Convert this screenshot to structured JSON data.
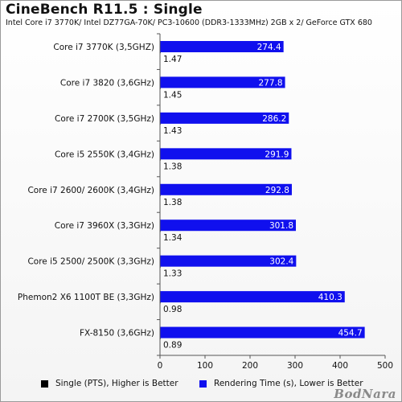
{
  "header": {
    "title": "CineBench R11.5 : Single",
    "subtitle": "Intel Core i7 3770K/ Intel DZ77GA-70K/ PC3-10600 (DDR3-1333MHz) 2GB x 2/ GeForce GTX 680"
  },
  "chart_data": {
    "type": "bar",
    "orientation": "horizontal",
    "title": "CineBench R11.5 : Single",
    "subtitle": "Intel Core i7 3770K/ Intel DZ77GA-70K/ PC3-10600 (DDR3-1333MHz) 2GB x 2/ GeForce GTX 680",
    "categories": [
      "Core i7 3770K (3,5GHZ)",
      "Core i7 3820 (3,6GHz)",
      "Core i7 2700K (3,5GHz)",
      "Core i5 2550K (3,4GHz)",
      "Core i7 2600/ 2600K (3,4GHz)",
      "Core i7 3960X (3,3GHz)",
      "Core i5 2500/ 2500K (3,3GHz)",
      "Phemon2 X6 1100T BE (3,3GHz)",
      "FX-8150 (3,6GHz)"
    ],
    "series": [
      {
        "name": "Single (PTS), Higher is Better",
        "color": "#000000",
        "values": [
          1.47,
          1.45,
          1.43,
          1.38,
          1.38,
          1.34,
          1.33,
          0.98,
          0.89
        ],
        "labels": [
          "1.47",
          "1.45",
          "1.43",
          "1.38",
          "1.38",
          "1.34",
          "1.33",
          "0.98",
          "0.89"
        ]
      },
      {
        "name": "Rendering Time (s), Lower is Better",
        "color": "#1010ee",
        "values": [
          274.4,
          277.8,
          286.2,
          291.9,
          292.8,
          301.8,
          302.4,
          410.3,
          454.7
        ],
        "labels": [
          "274.4",
          "277.8",
          "286.2",
          "291.9",
          "292.8",
          "301.8",
          "302.4",
          "410.3",
          "454.7"
        ]
      }
    ],
    "xlim": [
      0,
      500
    ],
    "xticks": [
      "0",
      "100",
      "200",
      "300",
      "400",
      "500"
    ],
    "grid": false,
    "legend_position": "bottom"
  },
  "watermark": "BodNara"
}
